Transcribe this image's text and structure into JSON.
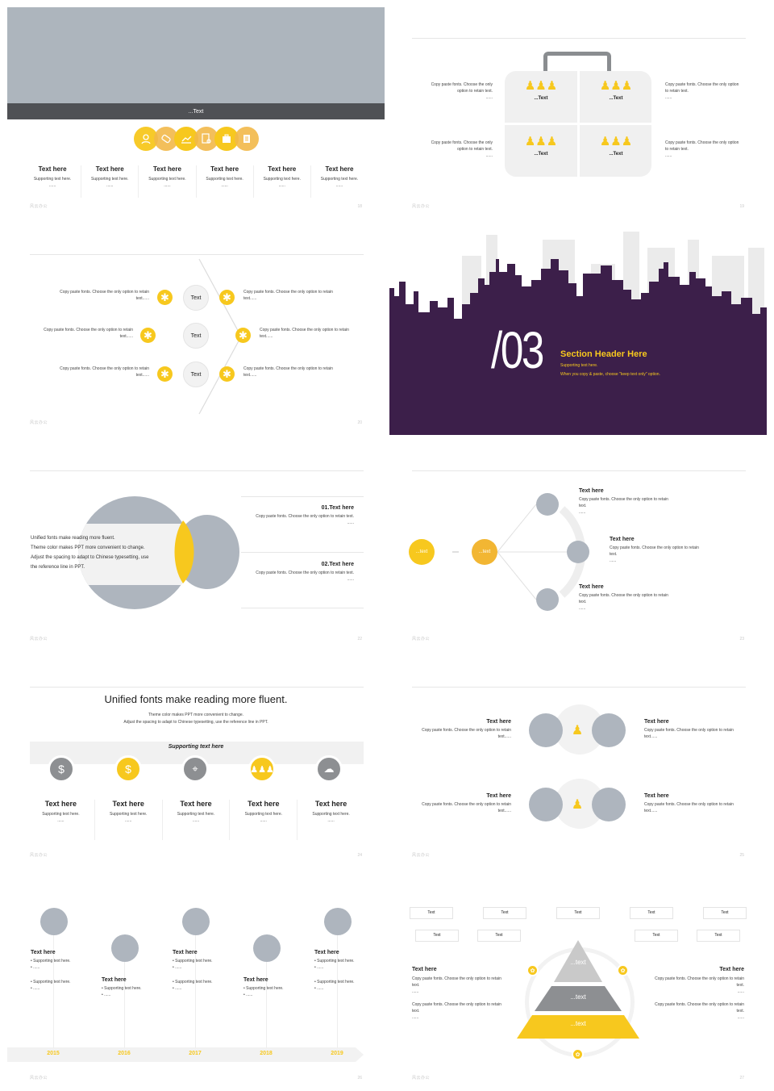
{
  "s19": {
    "banner_text": "...Text",
    "cols": [
      {
        "title": "Text here",
        "sub": "Supporting text here.",
        "dots": "......"
      },
      {
        "title": "Text here",
        "sub": "Supporting text here.",
        "dots": "......"
      },
      {
        "title": "Text here",
        "sub": "Supporting text here.",
        "dots": "......"
      },
      {
        "title": "Text here",
        "sub": "Supporting text here.",
        "dots": "......"
      },
      {
        "title": "Text here",
        "sub": "Supporting text here.",
        "dots": "......"
      },
      {
        "title": "Text here",
        "sub": "Supporting text here.",
        "dots": "......"
      }
    ],
    "icons": [
      "user-icon",
      "tag-icon",
      "chart-icon",
      "document-search-icon",
      "briefcase-icon",
      "list-icon"
    ],
    "brand": "风云办公",
    "page": "18"
  },
  "s19b": {
    "tl": {
      "text": "Copy paste fonts. Choose the only option to retain text.",
      "dots": "......"
    },
    "tr": {
      "text": "Copy paste fonts. Choose the only option to retain text.",
      "dots": "......"
    },
    "bl": {
      "text": "Copy paste fonts. Choose the only option to retain text.",
      "dots": "......"
    },
    "br": {
      "text": "Copy paste fonts. Choose the only option to retain text.",
      "dots": "......"
    },
    "pieces": [
      "...Text",
      "...Text",
      "...Text",
      "...Text"
    ],
    "brand": "风云办公",
    "page": "19"
  },
  "s20": {
    "left": [
      "Copy paste fonts. Choose the only option to retain text......",
      "Copy paste fonts. Choose the only option to retain text......",
      "Copy paste fonts. Choose the only option to retain text......"
    ],
    "right": [
      "Copy paste fonts. Choose the only option to retain text......",
      "Copy paste fonts. Choose the only option to retain text......",
      "Copy paste fonts. Choose the only option to retain text......"
    ],
    "center": [
      "Text",
      "Text",
      "Text"
    ],
    "brand": "风云办公",
    "page": "20"
  },
  "s21": {
    "number": "/03",
    "title": "Section Header Here",
    "sub1": "Supporting text here.",
    "sub2": "When you copy & paste, choose \"keep text only\" option.",
    "bg": "#3c1f4a",
    "accent": "#f7c81e"
  },
  "s22": {
    "lines": [
      "Unified fonts make reading more fluent.",
      "Theme color makes PPT more convenient to change.",
      "Adjust the spacing to adapt to Chinese typesetting, use",
      "the reference line in PPT."
    ],
    "item1_title": "01.Text here",
    "item1_text": "Copy paste fonts. Choose the only option to retain text.",
    "item1_dots": "......",
    "item2_title": "02.Text here",
    "item2_text": "Copy paste fonts. Choose the only option to retain text.",
    "item2_dots": "......",
    "brand": "风云办公",
    "page": "22"
  },
  "s23": {
    "c1": "...text",
    "c2": "...text",
    "items": [
      {
        "title": "Text here",
        "text": "Copy paste fonts. Choose the only option to retain text.",
        "dots": "......"
      },
      {
        "title": "Text here",
        "text": "Copy paste fonts. Choose the only option to retain text.",
        "dots": "......"
      },
      {
        "title": "Text here",
        "text": "Copy paste fonts. Choose the only option to retain text.",
        "dots": "......"
      }
    ],
    "brand": "风云办公",
    "page": "23"
  },
  "s24": {
    "title": "Unified fonts make reading more fluent.",
    "sub1": "Theme color makes PPT more convenient to change.",
    "sub2": "Adjust the spacing to adapt to Chinese typesetting, use the reference line in PPT.",
    "band": "Supporting text here",
    "cols": [
      {
        "title": "Text here",
        "sub": "Supporting text here.",
        "dots": "......"
      },
      {
        "title": "Text here",
        "sub": "Supporting text here.",
        "dots": "......"
      },
      {
        "title": "Text here",
        "sub": "Supporting text here.",
        "dots": "......"
      },
      {
        "title": "Text here",
        "sub": "Supporting text here.",
        "dots": "......"
      },
      {
        "title": "Text here",
        "sub": "Supporting text here.",
        "dots": "......"
      }
    ],
    "brand": "风云办公",
    "page": "24"
  },
  "s25": {
    "rows": [
      {
        "left_title": "Text here",
        "left_text": "Copy paste fonts. Choose the only option to retain text......",
        "right_title": "Text here",
        "right_text": "Copy paste fonts. Choose the only option to retain text......"
      },
      {
        "left_title": "Text here",
        "left_text": "Copy paste fonts. Choose the only option to retain text......",
        "right_title": "Text here",
        "right_text": "Copy paste fonts. Choose the only option to retain text......"
      }
    ],
    "brand": "风云办公",
    "page": "25"
  },
  "s26": {
    "years": [
      "2015",
      "2016",
      "2017",
      "2018",
      "2019"
    ],
    "items": [
      {
        "title": "Text here",
        "a": "Supporting text here.",
        "b": "......",
        "c": "Supporting text here.",
        "d": "......"
      },
      {
        "title": "Text here",
        "a": "Supporting text here.",
        "b": "......"
      },
      {
        "title": "Text here",
        "a": "Supporting text here.",
        "b": "......",
        "c": "Supporting text here.",
        "d": "......"
      },
      {
        "title": "Text here",
        "a": "Supporting text here.",
        "b": "......"
      },
      {
        "title": "Text here",
        "a": "Supporting text here.",
        "b": "......",
        "c": "Supporting text here.",
        "d": "......"
      }
    ],
    "brand": "风云办公",
    "page": "26"
  },
  "s27": {
    "top_row": [
      "Text",
      "Text",
      "Text",
      "Text",
      "Text"
    ],
    "second_row": [
      "Text",
      "Text",
      "Text",
      "Text"
    ],
    "left_title": "Text here",
    "left_p1": "Copy paste fonts. Choose the only option to retain text.",
    "left_d1": "......",
    "left_p2": "Copy paste fonts. Choose the only option to retain text.",
    "left_d2": "......",
    "right_title": "Text here",
    "right_p1": "Copy paste fonts. Choose the only option to retain text.",
    "right_d1": "......",
    "right_p2": "Copy paste fonts. Choose the only option to retain text.",
    "right_d2": "......",
    "pyramid": [
      "...text",
      "...text",
      "...text"
    ],
    "brand": "风云办公",
    "page": "27"
  }
}
